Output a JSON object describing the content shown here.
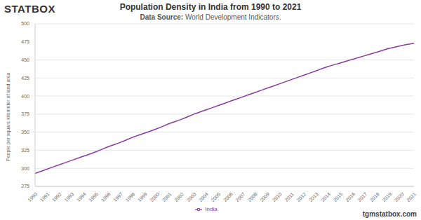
{
  "chart_data": {
    "type": "line",
    "title": "Population Density in India from 1990 to 2021",
    "subtitle": "Data Source: World Development Indicators.",
    "y_label": "People per square kilometer of land area",
    "annotations": [
      "STATBOX",
      "tgmstatbox.com"
    ],
    "categories": [
      "1990",
      "1991",
      "1992",
      "1993",
      "1994",
      "1995",
      "1996",
      "1997",
      "1998",
      "1999",
      "2000",
      "2001",
      "2002",
      "2003",
      "2004",
      "2005",
      "2006",
      "2007",
      "2008",
      "2009",
      "2010",
      "2011",
      "2012",
      "2013",
      "2014",
      "2015",
      "2016",
      "2017",
      "2018",
      "2019",
      "2020",
      "2021"
    ],
    "series": [
      {
        "name": "India",
        "color": "#8a3c9e",
        "marker": "none",
        "line_style": "solid",
        "values": [
          293,
          299,
          305,
          311,
          317,
          323,
          330,
          336,
          343,
          349,
          355,
          362,
          368,
          375,
          381,
          387,
          393,
          399,
          405,
          411,
          417,
          423,
          429,
          435,
          441,
          446,
          451,
          456,
          461,
          466,
          470,
          473
        ]
      }
    ],
    "ylim": [
      275,
      500
    ],
    "yticks": [
      275,
      300,
      325,
      350,
      375,
      400,
      425,
      450,
      475,
      500
    ],
    "grid": true,
    "legend": "bottom"
  }
}
